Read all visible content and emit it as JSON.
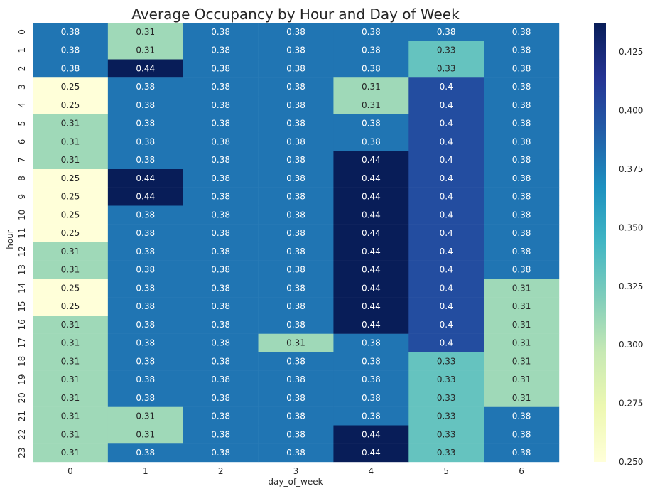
{
  "chart_data": {
    "type": "heatmap",
    "title": "Average Occupancy by Hour and Day of Week",
    "xlabel": "day_of_week",
    "ylabel": "hour",
    "x": [
      "0",
      "1",
      "2",
      "3",
      "4",
      "5",
      "6"
    ],
    "y": [
      "0",
      "1",
      "2",
      "3",
      "4",
      "5",
      "6",
      "7",
      "8",
      "9",
      "10",
      "11",
      "12",
      "13",
      "14",
      "15",
      "16",
      "17",
      "18",
      "19",
      "20",
      "21",
      "22",
      "23"
    ],
    "values": [
      [
        0.38,
        0.31,
        0.38,
        0.38,
        0.38,
        0.38,
        0.38
      ],
      [
        0.38,
        0.31,
        0.38,
        0.38,
        0.38,
        0.33,
        0.38
      ],
      [
        0.38,
        0.44,
        0.38,
        0.38,
        0.38,
        0.33,
        0.38
      ],
      [
        0.25,
        0.38,
        0.38,
        0.38,
        0.31,
        0.4,
        0.38
      ],
      [
        0.25,
        0.38,
        0.38,
        0.38,
        0.31,
        0.4,
        0.38
      ],
      [
        0.31,
        0.38,
        0.38,
        0.38,
        0.38,
        0.4,
        0.38
      ],
      [
        0.31,
        0.38,
        0.38,
        0.38,
        0.38,
        0.4,
        0.38
      ],
      [
        0.31,
        0.38,
        0.38,
        0.38,
        0.44,
        0.4,
        0.38
      ],
      [
        0.25,
        0.44,
        0.38,
        0.38,
        0.44,
        0.4,
        0.38
      ],
      [
        0.25,
        0.44,
        0.38,
        0.38,
        0.44,
        0.4,
        0.38
      ],
      [
        0.25,
        0.38,
        0.38,
        0.38,
        0.44,
        0.4,
        0.38
      ],
      [
        0.25,
        0.38,
        0.38,
        0.38,
        0.44,
        0.4,
        0.38
      ],
      [
        0.31,
        0.38,
        0.38,
        0.38,
        0.44,
        0.4,
        0.38
      ],
      [
        0.31,
        0.38,
        0.38,
        0.38,
        0.44,
        0.4,
        0.38
      ],
      [
        0.25,
        0.38,
        0.38,
        0.38,
        0.44,
        0.4,
        0.31
      ],
      [
        0.25,
        0.38,
        0.38,
        0.38,
        0.44,
        0.4,
        0.31
      ],
      [
        0.31,
        0.38,
        0.38,
        0.38,
        0.44,
        0.4,
        0.31
      ],
      [
        0.31,
        0.38,
        0.38,
        0.31,
        0.38,
        0.4,
        0.31
      ],
      [
        0.31,
        0.38,
        0.38,
        0.38,
        0.38,
        0.33,
        0.31
      ],
      [
        0.31,
        0.38,
        0.38,
        0.38,
        0.38,
        0.33,
        0.31
      ],
      [
        0.31,
        0.38,
        0.38,
        0.38,
        0.38,
        0.33,
        0.31
      ],
      [
        0.31,
        0.31,
        0.38,
        0.38,
        0.38,
        0.33,
        0.38
      ],
      [
        0.31,
        0.31,
        0.38,
        0.38,
        0.44,
        0.33,
        0.38
      ],
      [
        0.31,
        0.38,
        0.38,
        0.38,
        0.44,
        0.33,
        0.38
      ]
    ],
    "colorbar": {
      "range": [
        0.25,
        0.4375
      ],
      "ticks": [
        0.25,
        0.275,
        0.3,
        0.325,
        0.35,
        0.375,
        0.4,
        0.425
      ],
      "tick_labels": [
        "0.250",
        "0.275",
        "0.300",
        "0.325",
        "0.350",
        "0.375",
        "0.400",
        "0.425"
      ],
      "colormap": "YlGnBu"
    },
    "grid": false
  },
  "colors": {
    "background": "#ffffff",
    "text": "#262626",
    "light_annotation": "#ffffff",
    "dark_annotation": "#262626"
  }
}
